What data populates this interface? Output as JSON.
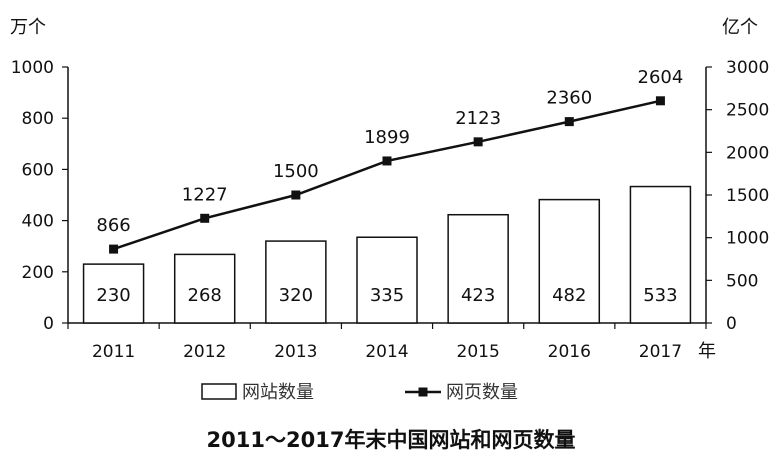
{
  "chart_data": {
    "type": "bar",
    "title": "2011～2017年末中国网站和网页数量",
    "categories": [
      "2011",
      "2012",
      "2013",
      "2014",
      "2015",
      "2016",
      "2017"
    ],
    "x_unit": "年",
    "y_left": {
      "unit": "万个",
      "ylim": [
        0,
        1000
      ],
      "ticks": [
        "0",
        "200",
        "400",
        "600",
        "800",
        "1000"
      ]
    },
    "y_right": {
      "unit": "亿个",
      "ylim": [
        0,
        3000
      ],
      "ticks": [
        "0",
        "500",
        "1000",
        "1500",
        "2000",
        "2500",
        "3000"
      ]
    },
    "series": [
      {
        "name": "网站数量",
        "type": "bar",
        "axis": "left",
        "color": "#ffffff",
        "values": [
          230,
          268,
          320,
          335,
          423,
          482,
          533
        ]
      },
      {
        "name": "网页数量",
        "type": "line",
        "axis": "right",
        "color": "#111111",
        "values": [
          866,
          1227,
          1500,
          1899,
          2123,
          2360,
          2604
        ]
      }
    ],
    "grid": false,
    "legend_position": "bottom"
  }
}
